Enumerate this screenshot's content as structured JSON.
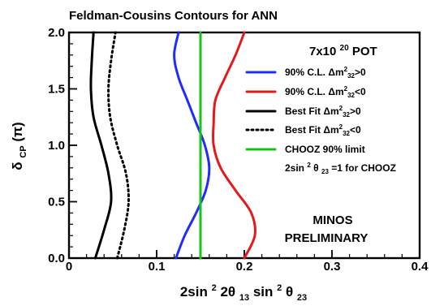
{
  "chart_data": {
    "type": "line",
    "title": "Feldman-Cousins Contours for ANN",
    "xlabel": {
      "base": "2sin",
      "sup1": "2",
      "mid1": "2θ",
      "sub1": "13",
      "mid2": "sin",
      "sup2": "2",
      "mid3": "θ",
      "sub2": "23"
    },
    "ylabel": {
      "main": "δ",
      "sub": "CP",
      "suffix": " (π)"
    },
    "xlim": [
      0,
      0.4
    ],
    "ylim": [
      0,
      2.0
    ],
    "x_ticks": [
      0,
      0.1,
      0.2,
      0.3,
      0.4
    ],
    "x_tick_labels": [
      "0",
      "0.1",
      "0.2",
      "0.3",
      "0.4"
    ],
    "y_ticks": [
      0,
      0.5,
      1.0,
      1.5,
      2.0
    ],
    "y_tick_labels": [
      "0.0",
      "0.5",
      "1.0",
      "1.5",
      "2.0"
    ],
    "grid": false,
    "legend_position": "top-right",
    "legend_header": {
      "base": "7x10",
      "sup": "20",
      "suffix": " POT"
    },
    "series": [
      {
        "name": "90% C.L. Δm²₃₂>0",
        "color": "#1f2cff",
        "line_style": "solid",
        "points": [
          [
            0.122,
            0.0
          ],
          [
            0.132,
            0.2
          ],
          [
            0.145,
            0.4
          ],
          [
            0.156,
            0.6
          ],
          [
            0.16,
            0.8
          ],
          [
            0.155,
            1.0
          ],
          [
            0.145,
            1.2
          ],
          [
            0.135,
            1.4
          ],
          [
            0.125,
            1.6
          ],
          [
            0.12,
            1.8
          ],
          [
            0.125,
            2.0
          ]
        ]
      },
      {
        "name": "90% C.L. Δm²₃₂<0",
        "color": "#e31a1c",
        "line_style": "solid",
        "points": [
          [
            0.2,
            0.0
          ],
          [
            0.212,
            0.2
          ],
          [
            0.208,
            0.4
          ],
          [
            0.19,
            0.6
          ],
          [
            0.173,
            0.8
          ],
          [
            0.165,
            1.0
          ],
          [
            0.165,
            1.2
          ],
          [
            0.167,
            1.4
          ],
          [
            0.178,
            1.6
          ],
          [
            0.19,
            1.8
          ],
          [
            0.2,
            2.0
          ]
        ]
      },
      {
        "name": "Best Fit Δm²₃₂>0",
        "color": "#000000",
        "line_style": "solid",
        "points": [
          [
            0.03,
            0.0
          ],
          [
            0.04,
            0.25
          ],
          [
            0.048,
            0.5
          ],
          [
            0.045,
            0.75
          ],
          [
            0.037,
            1.0
          ],
          [
            0.028,
            1.25
          ],
          [
            0.025,
            1.5
          ],
          [
            0.026,
            1.75
          ],
          [
            0.028,
            2.0
          ]
        ]
      },
      {
        "name": "Best Fit Δm²₃₂<0",
        "color": "#000000",
        "line_style": "dotted",
        "points": [
          [
            0.055,
            0.0
          ],
          [
            0.063,
            0.25
          ],
          [
            0.068,
            0.5
          ],
          [
            0.065,
            0.75
          ],
          [
            0.055,
            1.0
          ],
          [
            0.047,
            1.25
          ],
          [
            0.045,
            1.5
          ],
          [
            0.048,
            1.75
          ],
          [
            0.053,
            2.0
          ]
        ]
      },
      {
        "name": "CHOOZ 90% limit",
        "color": "#18c418",
        "line_style": "solid",
        "points": [
          [
            0.15,
            0.0
          ],
          [
            0.15,
            2.0
          ]
        ]
      }
    ],
    "legend_entries": [
      {
        "series_index": 0,
        "label_pre": "90% C.L. ",
        "delta": "Δm",
        "sup": "2",
        "sub": "32",
        "label_post": ">0"
      },
      {
        "series_index": 1,
        "label_pre": "90% C.L. ",
        "delta": "Δm",
        "sup": "2",
        "sub": "32",
        "label_post": "<0"
      },
      {
        "series_index": 2,
        "label_pre": "Best Fit ",
        "delta": "Δm",
        "sup": "2",
        "sub": "32",
        "label_post": ">0"
      },
      {
        "series_index": 3,
        "label_pre": "Best Fit ",
        "delta": "Δm",
        "sup": "2",
        "sub": "32",
        "label_post": "<0"
      },
      {
        "series_index": 4,
        "label_pre": "CHOOZ 90% limit",
        "delta": "",
        "sup": "",
        "sub": "",
        "label_post": ""
      }
    ],
    "annotations": {
      "chooz_note": {
        "base": "2sin",
        "sup": "2",
        "theta": "θ",
        "sub": "23",
        "suffix": "=1 for CHOOZ"
      },
      "minos_line1": "MINOS",
      "minos_line2": "PRELIMINARY"
    }
  }
}
